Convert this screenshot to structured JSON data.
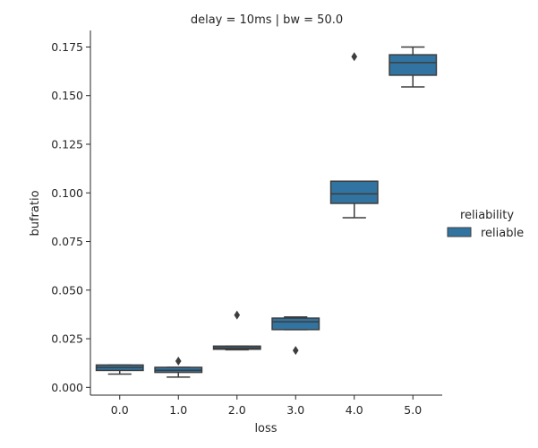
{
  "chart_data": {
    "type": "box",
    "title": "delay = 10ms | bw = 50.0",
    "xlabel": "loss",
    "ylabel": "bufratio",
    "categories": [
      "0.0",
      "1.0",
      "2.0",
      "3.0",
      "4.0",
      "5.0"
    ],
    "ylim": [
      -0.004,
      0.1835
    ],
    "yticks": [
      0.0,
      0.025,
      0.05,
      0.075,
      0.1,
      0.125,
      0.15,
      0.175
    ],
    "ytick_labels": [
      "0.000",
      "0.025",
      "0.050",
      "0.075",
      "0.100",
      "0.125",
      "0.150",
      "0.175"
    ],
    "legend": {
      "title": "reliability",
      "entries": [
        "reliable"
      ],
      "placement": "right"
    },
    "series": [
      {
        "name": "reliable",
        "color": "#3274a1",
        "boxes": [
          {
            "category": "0.0",
            "whisker_low": 0.0068,
            "q1": 0.0087,
            "median": 0.0102,
            "q3": 0.0115,
            "whisker_high": 0.0115,
            "outliers": []
          },
          {
            "category": "1.0",
            "whisker_low": 0.0053,
            "q1": 0.0077,
            "median": 0.0088,
            "q3": 0.0103,
            "whisker_high": 0.0103,
            "outliers": [
              0.0135
            ]
          },
          {
            "category": "2.0",
            "whisker_low": 0.0193,
            "q1": 0.0196,
            "median": 0.0203,
            "q3": 0.0212,
            "whisker_high": 0.0212,
            "outliers": [
              0.0372
            ]
          },
          {
            "category": "3.0",
            "whisker_low": 0.0297,
            "q1": 0.0297,
            "median": 0.0337,
            "q3": 0.0356,
            "whisker_high": 0.0362,
            "outliers": [
              0.019
            ]
          },
          {
            "category": "4.0",
            "whisker_low": 0.0872,
            "q1": 0.0946,
            "median": 0.0995,
            "q3": 0.106,
            "whisker_high": 0.106,
            "outliers": [
              0.17
            ]
          },
          {
            "category": "5.0",
            "whisker_low": 0.1545,
            "q1": 0.1605,
            "median": 0.167,
            "q3": 0.171,
            "whisker_high": 0.175,
            "outliers": []
          }
        ]
      }
    ]
  }
}
